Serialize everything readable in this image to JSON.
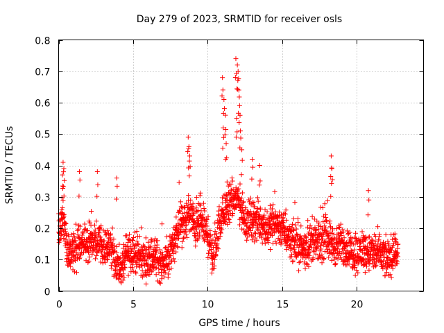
{
  "chart_data": {
    "type": "scatter",
    "title": "Day 279 of 2023, SRMTID for receiver osls",
    "xlabel": "GPS time / hours",
    "ylabel": "SRMTID / TECUs",
    "xlim": [
      0,
      24.5
    ],
    "ylim": [
      0,
      0.8
    ],
    "x_ticks": [
      0,
      5,
      10,
      15,
      20
    ],
    "x_tick_labels": [
      "0",
      "5",
      "10",
      "15",
      "20"
    ],
    "y_ticks": [
      0,
      0.1,
      0.2,
      0.3,
      0.4,
      0.5,
      0.6,
      0.7,
      0.8
    ],
    "y_tick_labels": [
      "0",
      "0.1",
      "0.2",
      "0.3",
      "0.4",
      "0.5",
      "0.6",
      "0.7",
      "0.8"
    ],
    "grid": true,
    "marker": "+",
    "marker_color": "#ff0000",
    "data_range_hours": [
      0,
      22.8
    ],
    "series": [
      {
        "name": "SRMTID",
        "x_step_hours": 0.01,
        "trend": [
          [
            0.0,
            0.18
          ],
          [
            0.3,
            0.25
          ],
          [
            0.6,
            0.12
          ],
          [
            1.0,
            0.13
          ],
          [
            1.5,
            0.16
          ],
          [
            2.0,
            0.15
          ],
          [
            2.5,
            0.16
          ],
          [
            3.0,
            0.14
          ],
          [
            3.5,
            0.15
          ],
          [
            3.8,
            0.1
          ],
          [
            4.2,
            0.07
          ],
          [
            4.6,
            0.12
          ],
          [
            5.0,
            0.13
          ],
          [
            5.5,
            0.1
          ],
          [
            6.0,
            0.1
          ],
          [
            6.5,
            0.11
          ],
          [
            7.0,
            0.08
          ],
          [
            7.5,
            0.12
          ],
          [
            8.0,
            0.2
          ],
          [
            8.5,
            0.22
          ],
          [
            8.8,
            0.25
          ],
          [
            9.2,
            0.2
          ],
          [
            9.6,
            0.22
          ],
          [
            10.0,
            0.18
          ],
          [
            10.4,
            0.1
          ],
          [
            10.8,
            0.22
          ],
          [
            11.2,
            0.26
          ],
          [
            11.6,
            0.28
          ],
          [
            12.0,
            0.3
          ],
          [
            12.3,
            0.25
          ],
          [
            12.6,
            0.22
          ],
          [
            13.0,
            0.23
          ],
          [
            13.5,
            0.22
          ],
          [
            14.0,
            0.2
          ],
          [
            14.5,
            0.22
          ],
          [
            15.0,
            0.2
          ],
          [
            15.5,
            0.17
          ],
          [
            16.0,
            0.15
          ],
          [
            16.5,
            0.13
          ],
          [
            17.0,
            0.16
          ],
          [
            17.5,
            0.15
          ],
          [
            18.0,
            0.18
          ],
          [
            18.5,
            0.14
          ],
          [
            19.0,
            0.15
          ],
          [
            19.5,
            0.13
          ],
          [
            20.0,
            0.12
          ],
          [
            20.5,
            0.13
          ],
          [
            21.0,
            0.12
          ],
          [
            21.5,
            0.12
          ],
          [
            22.0,
            0.1
          ],
          [
            22.5,
            0.12
          ],
          [
            22.8,
            0.13
          ]
        ],
        "spikes": [
          [
            0.3,
            0.41
          ],
          [
            0.35,
            0.39
          ],
          [
            0.25,
            0.37
          ],
          [
            1.4,
            0.38
          ],
          [
            2.6,
            0.38
          ],
          [
            3.9,
            0.36
          ],
          [
            8.7,
            0.49
          ],
          [
            8.75,
            0.46
          ],
          [
            8.8,
            0.43
          ],
          [
            11.0,
            0.68
          ],
          [
            11.1,
            0.61
          ],
          [
            11.2,
            0.56
          ],
          [
            11.05,
            0.52
          ],
          [
            11.25,
            0.47
          ],
          [
            11.9,
            0.74
          ],
          [
            12.0,
            0.72
          ],
          [
            12.05,
            0.7
          ],
          [
            12.1,
            0.64
          ],
          [
            12.15,
            0.59
          ],
          [
            11.95,
            0.55
          ],
          [
            12.2,
            0.51
          ],
          [
            12.3,
            0.45
          ],
          [
            13.0,
            0.42
          ],
          [
            13.5,
            0.4
          ],
          [
            18.3,
            0.43
          ],
          [
            18.35,
            0.39
          ],
          [
            20.8,
            0.32
          ]
        ],
        "noise_spread": 0.06
      }
    ]
  }
}
